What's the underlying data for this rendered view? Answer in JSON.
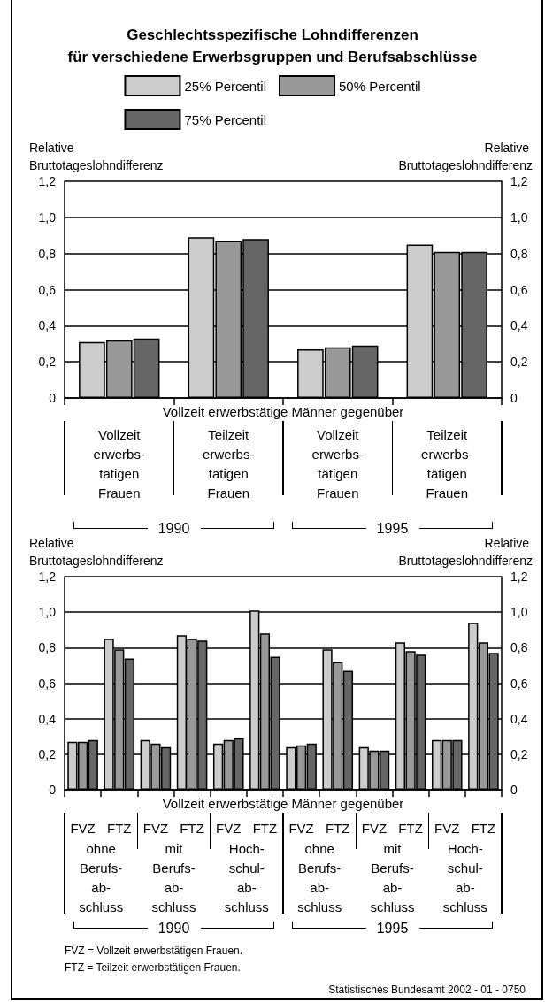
{
  "chart_data": [
    {
      "type": "bar",
      "title": "Geschlechtsspezifische Lohndifferenzen\nfür verschiedene Erwerbsgruppen und Berufsabschlüsse",
      "xlabel": "Vollzeit erwerbstätige Männer gegenüber",
      "ylabel": "Relative Bruttotageslohndifferenz",
      "y2label": "Relative Bruttotageslohndifferenz",
      "categories": [
        "Vollzeit\nerwerbs-\ntätigen\nFrauen",
        "Teilzeit\nerwerbs-\ntätigen\nFrauen",
        "Vollzeit\nerwerbs-\ntätigen\nFrauen",
        "Teilzeit\nerwerbs-\ntätigen\nFrauen"
      ],
      "series": [
        {
          "name": "25% Percentil",
          "color": "#cccccc",
          "values": [
            0.31,
            0.89,
            0.27,
            0.85
          ]
        },
        {
          "name": "50% Percentil",
          "color": "#999999",
          "values": [
            0.32,
            0.87,
            0.28,
            0.81
          ]
        },
        {
          "name": "75% Percentil",
          "color": "#666666",
          "values": [
            0.33,
            0.88,
            0.29,
            0.81
          ]
        }
      ],
      "ylim": [
        0,
        1.2
      ],
      "yticks": [
        0,
        {
          "value": 0.2,
          "label": "0,2"
        },
        {
          "value": 0.4,
          "label": "0,4"
        },
        {
          "value": 0.6,
          "label": "0,6"
        },
        {
          "value": 0.8,
          "label": "0,8"
        },
        {
          "value": 1.0,
          "label": "1,0"
        },
        {
          "value": 1.2,
          "label": "1,2"
        }
      ],
      "y2lim": [
        0,
        1.2
      ],
      "y2ticks": [
        0,
        {
          "value": 0.2,
          "label": "0,2"
        },
        {
          "value": 0.4,
          "label": "0,4"
        },
        {
          "value": 0.6,
          "label": "0,6"
        },
        {
          "value": 0.8,
          "label": "0,8"
        },
        {
          "value": 1.0,
          "label": "1,0"
        },
        {
          "value": 1.2,
          "label": "1,2"
        }
      ],
      "grid": "y",
      "legend": "top",
      "annotations": [
        "1990",
        "1995"
      ]
    },
    {
      "type": "bar",
      "xlabel": "Vollzeit erwerbstätige Männer gegenüber",
      "ylabel": "Relative Bruttotageslohndifferenz",
      "y2label": "Relative Bruttotageslohndifferenz",
      "categories": [
        "FVZ",
        "FTZ",
        "FVZ",
        "FTZ",
        "FVZ",
        "FTZ",
        "FVZ",
        "FTZ",
        "FVZ",
        "FTZ",
        "FVZ",
        "FTZ"
      ],
      "series": [
        {
          "color": "#cccccc",
          "values": [
            0.27,
            0.85,
            0.28,
            0.87,
            0.26,
            1.01,
            0.24,
            0.79,
            0.24,
            0.83,
            0.28,
            0.94
          ]
        },
        {
          "color": "#999999",
          "values": [
            0.27,
            0.79,
            0.26,
            0.85,
            0.28,
            0.88,
            0.25,
            0.72,
            0.22,
            0.78,
            0.28,
            0.83
          ]
        },
        {
          "color": "#666666",
          "values": [
            0.28,
            0.74,
            0.24,
            0.84,
            0.29,
            0.75,
            0.26,
            0.67,
            0.22,
            0.76,
            0.28,
            0.77
          ]
        }
      ],
      "ylim": [
        0,
        1.2
      ],
      "yticks": [
        0,
        {
          "value": 0.2,
          "label": "0,2"
        },
        {
          "value": 0.4,
          "label": "0,4"
        },
        {
          "value": 0.6,
          "label": "0,6"
        },
        {
          "value": 0.8,
          "label": "0,8"
        },
        {
          "value": 1.0,
          "label": "1,0"
        },
        {
          "value": 1.2,
          "label": "1,2"
        }
      ],
      "y2lim": [
        0,
        1.2
      ],
      "y2ticks": [
        0,
        {
          "value": 0.2,
          "label": "0,2"
        },
        {
          "value": 0.4,
          "label": "0,4"
        },
        {
          "value": 0.6,
          "label": "0,6"
        },
        {
          "value": 0.8,
          "label": "0,8"
        },
        {
          "value": 1.0,
          "label": "1,0"
        },
        {
          "value": 1.2,
          "label": "1,2"
        }
      ],
      "grid": "y",
      "annotations": [
        "ohne\nBerufs-\nab-\nschluss",
        "mit\nBerufs-\nab-\nschluss",
        "Hoch-\nschul-\nab-\nschluss",
        "ohne\nBerufs-\nab-\nschluss",
        "mit\nBerufs-\nab-\nschluss",
        "Hoch-\nschul-\nab-\nschluss",
        "1990",
        "1995",
        "FVZ = Vollzeit erwerbstätigen Frauen.",
        "FTZ = Teilzeit erwerbstätigen Frauen.",
        "Statistisches Bundesamt 2002 - 01 - 0750"
      ]
    }
  ]
}
